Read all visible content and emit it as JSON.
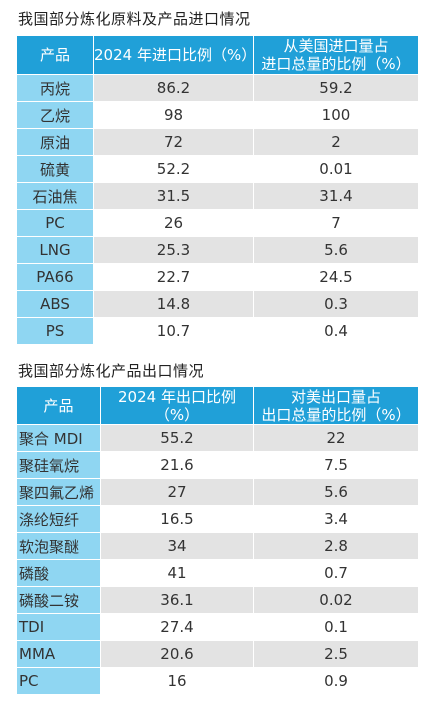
{
  "import_table": {
    "title": "我国部分炼化原料及产品进口情况",
    "headers": [
      "产品",
      "2024 年进口比例（%）",
      "从美国进口量占\n进口总量的比例（%）"
    ],
    "rows": [
      [
        "丙烷",
        "86.2",
        "59.2"
      ],
      [
        "乙烷",
        "98",
        "100"
      ],
      [
        "原油",
        "72",
        "2"
      ],
      [
        "硫黄",
        "52.2",
        "0.01"
      ],
      [
        "石油焦",
        "31.5",
        "31.4"
      ],
      [
        "PC",
        "26",
        "7"
      ],
      [
        "LNG",
        "25.3",
        "5.6"
      ],
      [
        "PA66",
        "22.7",
        "24.5"
      ],
      [
        "ABS",
        "14.8",
        "0.3"
      ],
      [
        "PS",
        "10.7",
        "0.4"
      ]
    ]
  },
  "export_table": {
    "title": "我国部分炼化产品出口情况",
    "headers": [
      "产品",
      "2024 年出口比例（%）",
      "对美出口量占\n出口总量的比例（%）"
    ],
    "rows": [
      [
        "聚合 MDI",
        "55.2",
        "22"
      ],
      [
        "聚硅氧烷",
        "21.6",
        "7.5"
      ],
      [
        "聚四氟乙烯",
        "27",
        "5.6"
      ],
      [
        "涤纶短纤",
        "16.5",
        "3.4"
      ],
      [
        "软泡聚醚",
        "34",
        "2.8"
      ],
      [
        "磷酸",
        "41",
        "0.7"
      ],
      [
        "磷酸二铵",
        "36.1",
        "0.02"
      ],
      [
        "TDI",
        "27.4",
        "0.1"
      ],
      [
        "MMA",
        "20.6",
        "2.5"
      ],
      [
        "PC",
        "16",
        "0.9"
      ]
    ]
  },
  "colors": {
    "header_bg": "#20a0d8",
    "name_cell_bg": "#8fd6f2",
    "row_stripe": "#e3e3e3"
  }
}
